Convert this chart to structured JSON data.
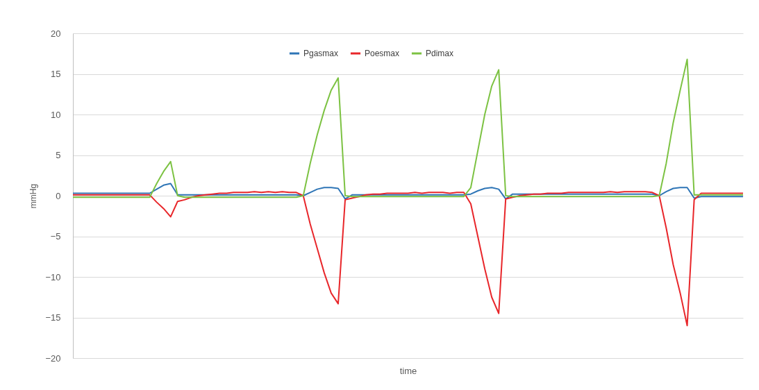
{
  "chart_data": {
    "type": "line",
    "xlabel": "time",
    "ylabel": "mmHg",
    "categories": [
      null,
      null,
      null,
      null,
      null,
      null,
      null,
      null,
      null,
      null,
      null,
      null,
      null,
      null,
      null,
      null,
      null,
      null,
      null,
      null,
      null,
      null,
      null,
      null,
      null,
      null,
      null,
      null,
      null,
      null,
      null,
      null,
      null,
      null,
      null,
      null,
      null,
      null,
      null,
      null,
      null,
      null,
      null,
      null,
      null,
      null,
      null,
      null,
      null,
      null,
      null,
      null,
      null,
      null,
      null,
      null,
      null,
      null,
      null,
      null,
      null,
      null,
      null,
      null,
      null,
      null,
      null,
      null,
      null,
      null,
      null,
      null,
      null,
      null,
      null,
      null,
      null,
      null,
      null,
      null,
      null,
      null,
      null,
      null,
      null,
      null,
      null,
      null,
      null,
      null,
      null,
      null,
      null,
      null,
      null,
      null,
      null
    ],
    "series": [
      {
        "name": "Pgasmax",
        "color": "#2e75b6",
        "values": [
          0.3,
          0.3,
          0.3,
          0.3,
          0.3,
          0.3,
          0.3,
          0.3,
          0.3,
          0.3,
          0.3,
          0.3,
          0.8,
          1.3,
          1.5,
          0.1,
          0.1,
          0.1,
          0.1,
          0.1,
          0.1,
          0.1,
          0.1,
          0.1,
          0.1,
          0.1,
          0.1,
          0.1,
          0.1,
          0.1,
          0.1,
          0.1,
          0.1,
          0,
          0.4,
          0.8,
          1.0,
          1.0,
          0.9,
          -0.4,
          0.1,
          0.1,
          0.1,
          0.1,
          0.1,
          0.1,
          0.1,
          0.1,
          0.1,
          0.1,
          0.1,
          0.1,
          0.1,
          0.1,
          0.1,
          0.1,
          0.1,
          0.2,
          0.6,
          0.9,
          1.0,
          0.8,
          -0.4,
          0.2,
          0.2,
          0.2,
          0.2,
          0.2,
          0.2,
          0.2,
          0.2,
          0.2,
          0.2,
          0.2,
          0.2,
          0.2,
          0.2,
          0.2,
          0.2,
          0.2,
          0.2,
          0.2,
          0.2,
          0.2,
          0,
          0.5,
          0.9,
          1.0,
          1.0,
          -0.3,
          -0.1,
          -0.1,
          -0.1,
          -0.1,
          -0.1,
          -0.1,
          -0.1
        ]
      },
      {
        "name": "Poesmax",
        "color": "#e8262a",
        "values": [
          0.1,
          0.1,
          0.1,
          0.1,
          0.1,
          0.1,
          0.1,
          0.1,
          0.1,
          0.1,
          0.1,
          0.1,
          -0.8,
          -1.6,
          -2.6,
          -0.7,
          -0.5,
          -0.2,
          0,
          0.1,
          0.2,
          0.3,
          0.3,
          0.4,
          0.4,
          0.4,
          0.5,
          0.4,
          0.5,
          0.4,
          0.5,
          0.4,
          0.4,
          0,
          -3.5,
          -6.5,
          -9.5,
          -12,
          -13.3,
          -0.5,
          -0.3,
          -0.1,
          0.1,
          0.2,
          0.2,
          0.3,
          0.3,
          0.3,
          0.3,
          0.4,
          0.3,
          0.4,
          0.4,
          0.4,
          0.3,
          0.4,
          0.4,
          -1,
          -5,
          -9,
          -12.5,
          -14.5,
          -0.4,
          -0.2,
          0,
          0.1,
          0.2,
          0.2,
          0.3,
          0.3,
          0.3,
          0.4,
          0.4,
          0.4,
          0.4,
          0.4,
          0.4,
          0.5,
          0.4,
          0.5,
          0.5,
          0.5,
          0.5,
          0.4,
          0,
          -4,
          -8.5,
          -12,
          -16,
          -0.5,
          0.3,
          0.3,
          0.3,
          0.3,
          0.3,
          0.3,
          0.3
        ]
      },
      {
        "name": "Pdimax",
        "color": "#7cc242",
        "values": [
          -0.2,
          -0.2,
          -0.2,
          -0.2,
          -0.2,
          -0.2,
          -0.2,
          -0.2,
          -0.2,
          -0.2,
          -0.2,
          -0.2,
          1.5,
          3,
          4.2,
          0,
          -0.2,
          -0.2,
          -0.2,
          -0.2,
          -0.2,
          -0.2,
          -0.2,
          -0.2,
          -0.2,
          -0.2,
          -0.2,
          -0.2,
          -0.2,
          -0.2,
          -0.2,
          -0.2,
          -0.2,
          0,
          4,
          7.5,
          10.5,
          13,
          14.5,
          0,
          -0.1,
          -0.1,
          -0.1,
          -0.1,
          -0.1,
          -0.1,
          -0.1,
          -0.1,
          -0.1,
          -0.1,
          -0.1,
          -0.1,
          -0.1,
          -0.1,
          -0.1,
          -0.1,
          -0.1,
          1,
          5.5,
          10,
          13.5,
          15.5,
          0,
          -0.1,
          -0.1,
          -0.1,
          -0.1,
          -0.1,
          -0.1,
          -0.1,
          -0.1,
          -0.1,
          -0.1,
          -0.1,
          -0.1,
          -0.1,
          -0.1,
          -0.1,
          -0.1,
          -0.1,
          -0.1,
          -0.1,
          -0.1,
          -0.1,
          0,
          4,
          9,
          13,
          16.8,
          0.1,
          0.1,
          0.1,
          0.1,
          0.1,
          0.1,
          0.1,
          0.1
        ]
      }
    ],
    "ylim": [
      -20,
      20
    ],
    "yticks": [
      -20,
      -15,
      -10,
      -5,
      0,
      5,
      10,
      15,
      20
    ],
    "grid": "y",
    "legend": "top",
    "marker": "none",
    "line_style": "solid"
  }
}
